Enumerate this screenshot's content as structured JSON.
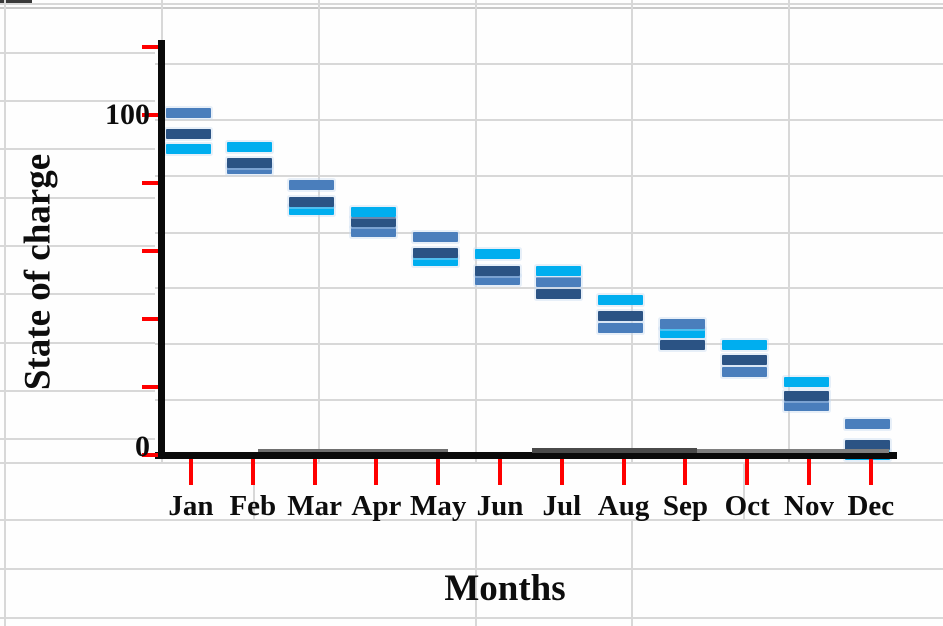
{
  "labels": {
    "y_axis_title": "State of charge",
    "x_axis_title": "Months",
    "y_tick_100": "100",
    "y_tick_0": "0"
  },
  "chart_data": {
    "type": "bar",
    "subtype": "floating-dash-marks",
    "title": "",
    "xlabel": "Months",
    "ylabel": "State of charge",
    "categories": [
      "Jan",
      "Feb",
      "Mar",
      "Apr",
      "May",
      "Jun",
      "Jul",
      "Aug",
      "Sep",
      "Oct",
      "Nov",
      "Dec"
    ],
    "ylim": [
      0,
      120
    ],
    "y_major_unit": 20,
    "y_tick_values_shown_as_labels": [
      100,
      0
    ],
    "axis_color": "#0a0a0a",
    "tick_color": "#ff0000",
    "gridline_color": "#d8d8d8",
    "legend": "none",
    "grid": true,
    "series": [
      {
        "name": "light-blue",
        "color": "#00aeef",
        "values": [
          90,
          90.5,
          72,
          71.5,
          57,
          59,
          54,
          45.5,
          36,
          32.5,
          21.5,
          0
        ]
      },
      {
        "name": "dark-blue",
        "color": "#2b5384",
        "values": [
          94.5,
          86,
          74.5,
          68.5,
          59.5,
          54,
          47.5,
          41,
          32.5,
          28,
          17.5,
          3
        ]
      },
      {
        "name": "medium-blue",
        "color": "#4a7ebc",
        "values": [
          100.5,
          84,
          79.5,
          65.5,
          64,
          51.5,
          51,
          37.5,
          38.5,
          24.5,
          14.5,
          9
        ]
      }
    ]
  }
}
